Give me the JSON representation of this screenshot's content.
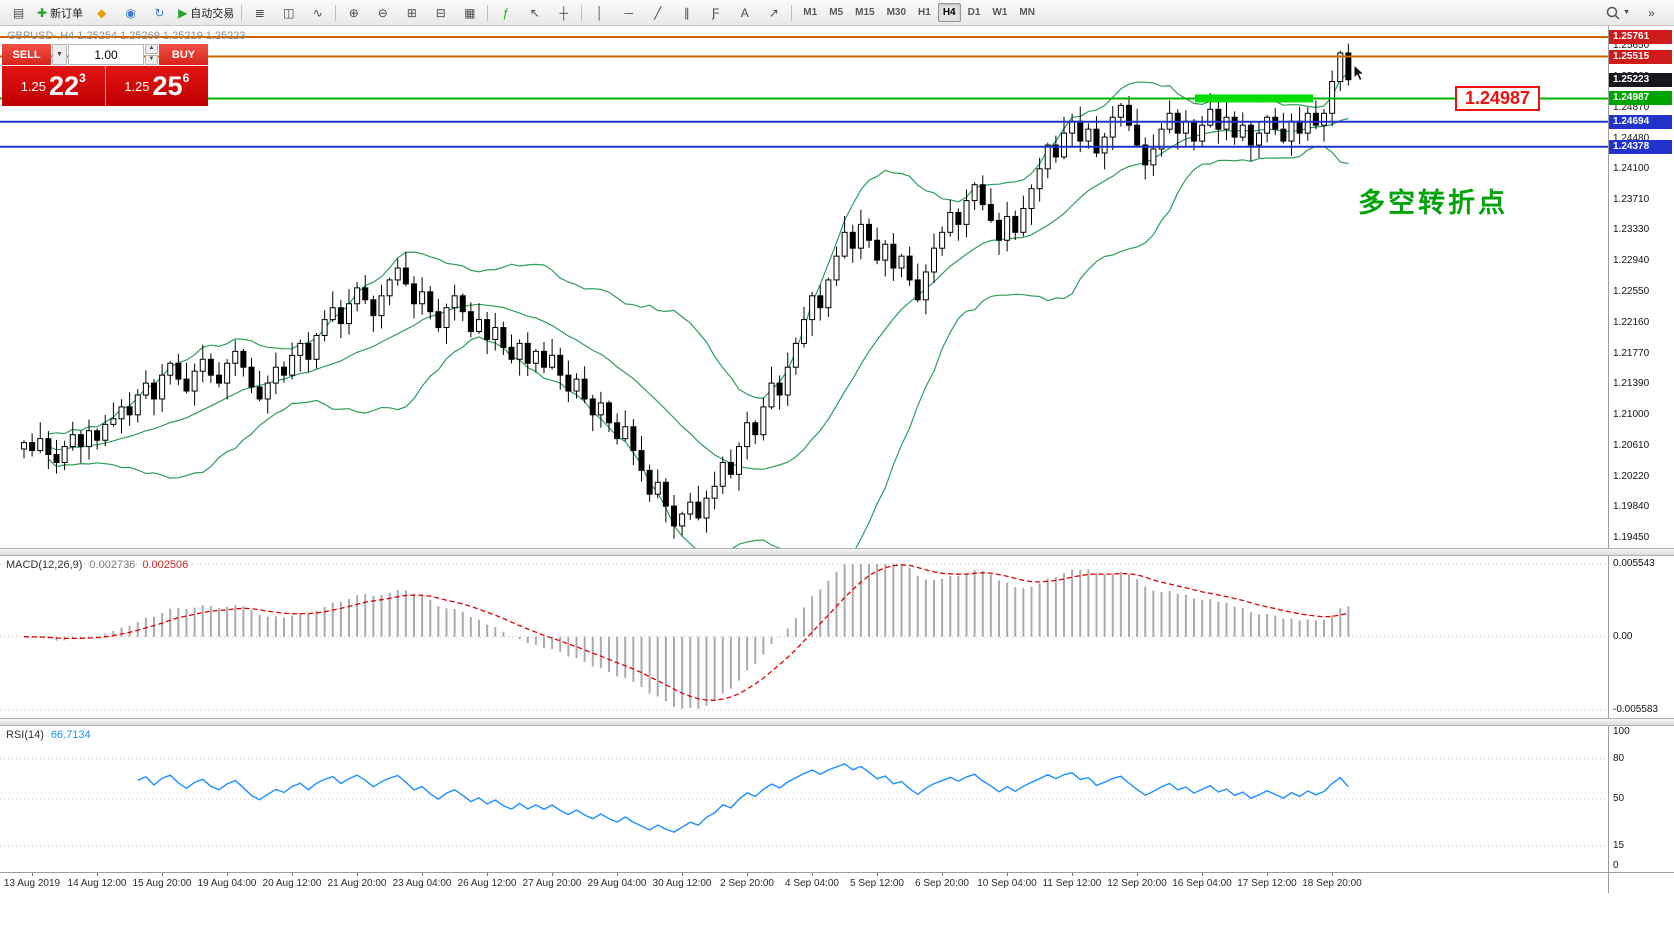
{
  "glyphs": {
    "caret_down": "▼",
    "caret_up": "▲"
  },
  "toolbar": {
    "items_left": [
      {
        "name": "charts-window-icon",
        "glyph": "▤"
      },
      {
        "name": "new-order-button",
        "glyph": "✚",
        "glyph_color": "#2aa12e",
        "label": "新订单"
      },
      {
        "name": "navigator-icon",
        "glyph": "◆",
        "glyph_color": "#e3a008"
      },
      {
        "name": "market-watch-icon",
        "glyph": "◉",
        "glyph_color": "#3b7bd4"
      },
      {
        "name": "history-center-icon",
        "glyph": "↻",
        "glyph_color": "#3b7bd4"
      },
      {
        "name": "autotrading-button",
        "glyph": "▶",
        "glyph_color": "#2aa12e",
        "label": "自动交易"
      },
      {
        "sep": true
      },
      {
        "name": "bar-chart-button",
        "glyph": "≣"
      },
      {
        "name": "candlestick-chart-button",
        "glyph": "◫"
      },
      {
        "name": "line-chart-button",
        "glyph": "∿"
      },
      {
        "sep": true
      },
      {
        "name": "zoom-in-button",
        "glyph": "⊕"
      },
      {
        "name": "zoom-out-button",
        "glyph": "⊖"
      },
      {
        "name": "tile-windows-button",
        "glyph": "⊞"
      },
      {
        "name": "cascade-windows-button",
        "glyph": "⊟"
      },
      {
        "name": "grid-toggle-button",
        "glyph": "▦"
      },
      {
        "sep": true
      },
      {
        "name": "indicators-button",
        "glyph": "ƒ",
        "glyph_color": "#2aa12e"
      },
      {
        "name": "cursor-tool-button",
        "glyph": "↖"
      },
      {
        "name": "crosshair-tool-button",
        "glyph": "┼"
      },
      {
        "sep": true
      },
      {
        "name": "vertical-line-tool-button",
        "glyph": "│"
      },
      {
        "name": "horizontal-line-tool-button",
        "glyph": "─"
      },
      {
        "name": "trendline-tool-button",
        "glyph": "╱"
      },
      {
        "name": "channel-tool-button",
        "glyph": "∥"
      },
      {
        "name": "fibonacci-tool-button",
        "glyph": "Ƒ"
      },
      {
        "name": "text-tool-button",
        "glyph": "A"
      },
      {
        "name": "arrows-tool-button",
        "glyph": "↗"
      },
      {
        "sep": true
      }
    ],
    "timeframes": [
      "M1",
      "M5",
      "M15",
      "M30",
      "H1",
      "H4",
      "D1",
      "W1",
      "MN"
    ],
    "active_timeframe": "H4",
    "right_items": [
      {
        "name": "toolbar-overflow-button",
        "glyph": "»"
      }
    ]
  },
  "trade_panel": {
    "sell_label": "SELL",
    "buy_label": "BUY",
    "volume": "1.00",
    "sell_price": {
      "prefix": "1.25",
      "big": "22",
      "sup": "3"
    },
    "buy_price": {
      "prefix": "1.25",
      "big": "25",
      "sup": "6"
    }
  },
  "chart": {
    "symbol_label": "GBPUSD-,H4 1.25254 1.25269 1.25219 1.25223",
    "annotation": "多空转折点",
    "callout": "1.24987"
  },
  "chart_data": {
    "type": "candlestick",
    "symbol": "GBPUSD-",
    "timeframe": "H4",
    "ohlc_display": {
      "open": "1.25254",
      "high": "1.25269",
      "low": "1.25219",
      "close": "1.25223"
    },
    "price_axis": {
      "visible_top": 1.259,
      "visible_bottom": 1.19322,
      "ticks": [
        "1.25650",
        "1.25260",
        "1.24870",
        "1.24480",
        "1.24100",
        "1.23710",
        "1.23330",
        "1.22940",
        "1.22550",
        "1.22160",
        "1.21770",
        "1.21390",
        "1.21000",
        "1.20610",
        "1.20220",
        "1.19840",
        "1.19450"
      ]
    },
    "levels": [
      {
        "price": 1.25761,
        "label": "1.25761",
        "line_color": "#cc6600",
        "chip_bg": "#d01b1b",
        "width": 2
      },
      {
        "price": 1.25515,
        "label": "1.25515",
        "line_color": "#cc6600",
        "chip_bg": "#d01b1b",
        "width": 2
      },
      {
        "price": 1.25223,
        "label": "1.25223",
        "line_color": null,
        "chip_bg": "#17181d"
      },
      {
        "price": 1.24987,
        "label": "1.24987",
        "line_color": "#00b400",
        "chip_bg": "#00a400",
        "width": 2
      },
      {
        "price": 1.24694,
        "label": "1.24694",
        "line_color": "#2233cc",
        "chip_bg": "#2233cc",
        "width": 2
      },
      {
        "price": 1.24378,
        "label": "1.24378",
        "line_color": "#2233cc",
        "chip_bg": "#2233cc",
        "width": 2
      }
    ],
    "highlight_segment": {
      "price": 1.24987,
      "color": "#00dd00"
    },
    "candle_colors": {
      "bull": "#ffffff",
      "bear": "#000000",
      "outline": "#000000"
    },
    "bollinger": {
      "period": 20,
      "deviation": 2,
      "color": "#2e9e5b"
    },
    "closes": [
      1.2065,
      1.2055,
      1.207,
      1.205,
      1.204,
      1.206,
      1.2075,
      1.206,
      1.208,
      1.2068,
      1.2088,
      1.2095,
      1.211,
      1.21,
      1.2125,
      1.214,
      1.212,
      1.215,
      1.2165,
      1.2145,
      1.213,
      1.2155,
      1.217,
      1.215,
      1.214,
      1.2165,
      1.218,
      1.216,
      1.2135,
      1.212,
      1.214,
      1.216,
      1.215,
      1.2175,
      1.219,
      1.217,
      1.22,
      1.222,
      1.2235,
      1.2215,
      1.224,
      1.226,
      1.2245,
      1.2225,
      1.225,
      1.227,
      1.2285,
      1.2265,
      1.224,
      1.2255,
      1.223,
      1.221,
      1.2235,
      1.225,
      1.223,
      1.2205,
      1.222,
      1.2195,
      1.221,
      1.2185,
      1.217,
      1.219,
      1.2165,
      1.218,
      1.216,
      1.2175,
      1.215,
      1.213,
      1.2145,
      1.212,
      1.21,
      1.2115,
      1.209,
      1.207,
      1.2085,
      1.2055,
      1.203,
      1.2,
      1.2015,
      1.1985,
      1.196,
      1.1975,
      1.199,
      1.197,
      1.1995,
      1.201,
      1.204,
      1.2025,
      1.206,
      1.209,
      1.2075,
      1.211,
      1.214,
      1.2125,
      1.216,
      1.219,
      1.222,
      1.225,
      1.2235,
      1.227,
      1.23,
      1.233,
      1.231,
      1.234,
      1.232,
      1.2295,
      1.2315,
      1.2285,
      1.23,
      1.227,
      1.2245,
      1.228,
      1.231,
      1.233,
      1.2355,
      1.234,
      1.237,
      1.239,
      1.2365,
      1.2345,
      1.232,
      1.235,
      1.233,
      1.236,
      1.2385,
      1.241,
      1.244,
      1.2425,
      1.2455,
      1.247,
      1.2445,
      1.246,
      1.243,
      1.245,
      1.2475,
      1.249,
      1.2465,
      1.244,
      1.2415,
      1.2435,
      1.246,
      1.248,
      1.2455,
      1.247,
      1.2445,
      1.2465,
      1.2485,
      1.246,
      1.2475,
      1.245,
      1.2465,
      1.244,
      1.2455,
      1.2475,
      1.246,
      1.2445,
      1.247,
      1.2455,
      1.248,
      1.2465,
      1.248,
      1.252,
      1.2556,
      1.25223
    ],
    "macd": {
      "label": "MACD(12,26,9)",
      "value_main": "0.002736",
      "value_signal": "0.002506",
      "axis_max": "0.005543",
      "axis_zero": "0.00",
      "axis_min": "-0.005583",
      "fast": 12,
      "slow": 26,
      "signal": 9,
      "histogram_color": "#ababab",
      "signal_color": "#e00000"
    },
    "rsi": {
      "label": "RSI(14)",
      "value": "66.7134",
      "period": 14,
      "color": "#1e90ff",
      "axis_ticks": [
        "100",
        "80",
        "50",
        "15",
        "0"
      ],
      "levels": [
        80,
        50,
        15
      ]
    },
    "time_labels": [
      "13 Aug 2019",
      "14 Aug 12:00",
      "15 Aug 20:00",
      "19 Aug 04:00",
      "20 Aug 12:00",
      "21 Aug 20:00",
      "23 Aug 04:00",
      "26 Aug 12:00",
      "27 Aug 20:00",
      "29 Aug 04:00",
      "30 Aug 12:00",
      "2 Sep 20:00",
      "4 Sep 04:00",
      "5 Sep 12:00",
      "6 Sep 20:00",
      "10 Sep 04:00",
      "11 Sep 12:00",
      "12 Sep 20:00",
      "16 Sep 04:00",
      "17 Sep 12:00",
      "18 Sep 20:00"
    ]
  }
}
